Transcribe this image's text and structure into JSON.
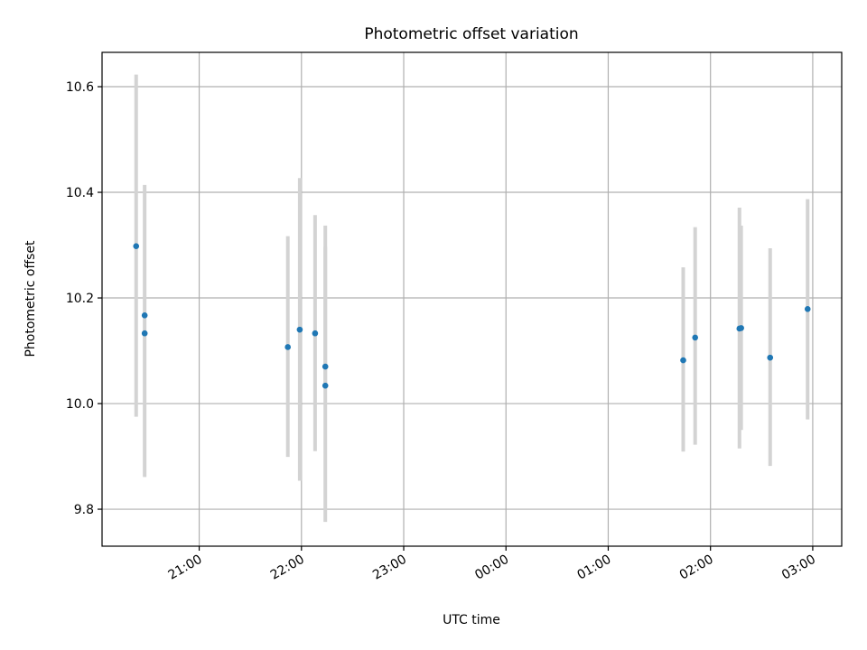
{
  "chart_data": {
    "type": "scatter",
    "title": "Photometric offset variation",
    "xlabel": "UTC time",
    "ylabel": "Photometric offset",
    "x_ticks": [
      "21:00",
      "22:00",
      "23:00",
      "00:00",
      "01:00",
      "02:00",
      "03:00"
    ],
    "y_ticks": [
      "9.8",
      "10.0",
      "10.2",
      "10.4",
      "10.6"
    ],
    "xlim": [
      "20:03",
      "03:17"
    ],
    "ylim": [
      9.73,
      10.665
    ],
    "grid": true,
    "series": [
      {
        "x": [
          "20:23",
          "20:28",
          "20:28",
          "21:52",
          "21:59",
          "22:08",
          "22:14",
          "22:14",
          "01:44",
          "01:51",
          "02:17",
          "02:18",
          "02:35",
          "02:57"
        ],
        "y": [
          10.298,
          10.167,
          10.133,
          10.107,
          10.14,
          10.133,
          10.07,
          10.034,
          10.082,
          10.125,
          10.142,
          10.143,
          10.087,
          10.179
        ],
        "yerr_low": [
          9.975,
          9.861,
          null,
          9.899,
          9.854,
          9.91,
          9.776,
          null,
          9.909,
          9.922,
          9.915,
          9.95,
          9.882,
          9.97
        ],
        "yerr_high": [
          10.623,
          10.414,
          null,
          10.317,
          10.427,
          10.357,
          10.337,
          10.297,
          10.258,
          10.334,
          10.371,
          10.337,
          10.294,
          10.387
        ]
      }
    ],
    "colors": {
      "marker": "#1f77b4",
      "errorbar": "#d3d3d3",
      "grid": "#b0b0b0"
    }
  }
}
